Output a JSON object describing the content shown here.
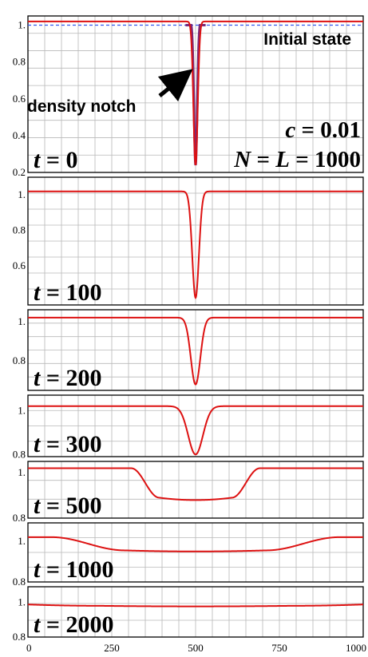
{
  "chart_data": {
    "type": "line",
    "xlim": [
      0,
      1000
    ],
    "xticks": [
      0,
      250,
      500,
      750,
      1000
    ],
    "grid": true,
    "colors": {
      "series": "#dd1111",
      "initial": "#3355ee",
      "notch_fill": "#7a2a7a"
    },
    "panels": [
      {
        "t_label": "t = 0",
        "ylim": [
          0.2,
          1.05
        ],
        "yticks": [
          "0.2",
          "0.4",
          "0.6",
          "0.8",
          "1."
        ],
        "series": {
          "type": "notch",
          "center": 500,
          "baseline": 1.02,
          "depth": 0.78,
          "width": 9
        },
        "initial_state": {
          "value": 1.0,
          "label": "Initial state"
        },
        "annotation": "density notch",
        "params": [
          "c = 0.01",
          "N = L = 1000"
        ]
      },
      {
        "t_label": "t = 100",
        "ylim": [
          0.38,
          1.1
        ],
        "yticks": [
          "0.6",
          "0.8",
          "1."
        ],
        "series": {
          "type": "notch",
          "center": 500,
          "baseline": 1.02,
          "depth": 0.6,
          "width": 14
        }
      },
      {
        "t_label": "t = 200",
        "ylim": [
          0.65,
          1.06
        ],
        "yticks": [
          "0.8",
          "1."
        ],
        "series": {
          "type": "notch",
          "center": 500,
          "baseline": 1.02,
          "depth": 0.34,
          "width": 20
        }
      },
      {
        "t_label": "t = 300",
        "ylim": [
          0.79,
          1.07
        ],
        "yticks": [
          "0.8",
          "1."
        ],
        "series": {
          "type": "notch",
          "center": 500,
          "baseline": 1.02,
          "depth": 0.22,
          "width": 31
        }
      },
      {
        "t_label": "t = 500",
        "ylim": [
          0.8,
          1.05
        ],
        "yticks": [
          "0.8",
          "1."
        ],
        "series": {
          "type": "plateau",
          "center": 500,
          "baseline": 1.02,
          "depth": 0.13,
          "half_width": 150,
          "edge": 42
        }
      },
      {
        "t_label": "t = 1000",
        "ylim": [
          0.8,
          1.09
        ],
        "yticks": [
          "0.8",
          "1."
        ],
        "series": {
          "type": "plateau",
          "center": 500,
          "baseline": 1.02,
          "depth": 0.065,
          "half_width": 320,
          "edge": 110
        }
      },
      {
        "t_label": "t = 2000",
        "ylim": [
          0.8,
          1.09
        ],
        "yticks": [
          "0.8",
          "1."
        ],
        "series": {
          "type": "plateau",
          "center": 500,
          "baseline": 1.02,
          "depth": 0.04,
          "half_width": 660,
          "edge": 380
        }
      }
    ]
  }
}
